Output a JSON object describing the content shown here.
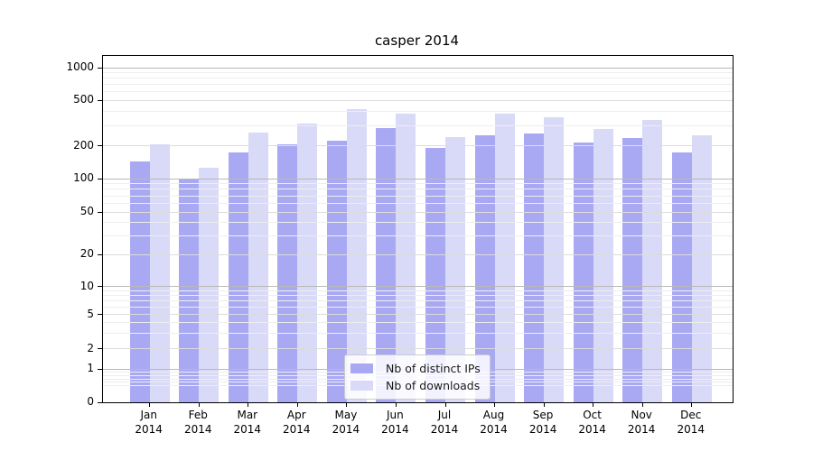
{
  "chart_data": {
    "type": "bar",
    "title": "casper 2014",
    "year_label": "2014",
    "categories": [
      "Jan",
      "Feb",
      "Mar",
      "Apr",
      "May",
      "Jun",
      "Jul",
      "Aug",
      "Sep",
      "Oct",
      "Nov",
      "Dec"
    ],
    "series": [
      {
        "name": "Nb of distinct IPs",
        "color": "#a9a9f3",
        "values": [
          143,
          101,
          173,
          205,
          222,
          287,
          192,
          249,
          256,
          215,
          234,
          173
        ]
      },
      {
        "name": "Nb of downloads",
        "color": "#d9d9f8",
        "values": [
          205,
          126,
          259,
          311,
          418,
          385,
          239,
          385,
          358,
          280,
          334,
          246
        ]
      }
    ],
    "y_ticks": [
      0,
      1,
      2,
      5,
      10,
      20,
      50,
      100,
      200,
      500,
      1000
    ],
    "y_tick_labels": [
      "0",
      "1",
      "2",
      "5",
      "10",
      "20",
      "50",
      "100",
      "200",
      "500",
      "1000"
    ],
    "y_scale": "log-with-zero (symlog-like)",
    "ylim": [
      0,
      1000
    ],
    "grid": "horizontal, major and minor, drawn above bars",
    "legend_position": "lower center inside plot",
    "grid_colors": {
      "decade": "#b9b9b9",
      "major": "#dcdcdc",
      "minor": "#eeeeee"
    }
  }
}
